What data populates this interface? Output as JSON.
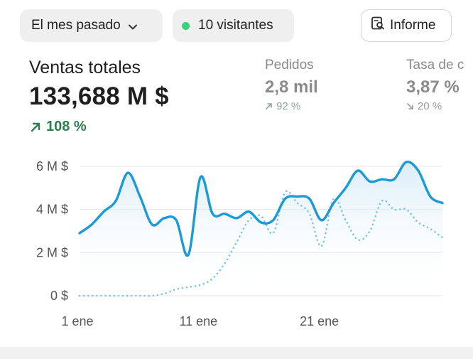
{
  "filters": {
    "period_label": "El mes pasado",
    "visitors_label": "10 visitantes",
    "visitors_dot_color": "#34d27b"
  },
  "report_button": {
    "label": "Informe",
    "icon": "report-search-icon"
  },
  "metrics": {
    "main": {
      "label": "Ventas totales",
      "value": "133,688 M $",
      "change": "108 %",
      "change_icon": "arrow-up-right-icon",
      "change_color": "#2e7d4f"
    },
    "orders": {
      "label": "Pedidos",
      "value": "2,8 mil",
      "change": "92 %",
      "change_icon": "arrow-up-right-icon"
    },
    "conversion": {
      "label": "Tasa de c",
      "value": "3,87 %",
      "change": "20 %",
      "change_icon": "arrow-down-right-icon"
    }
  },
  "chart_data": {
    "type": "line",
    "x_ticks": [
      "1 ene",
      "11 ene",
      "21 ene"
    ],
    "y_ticks": [
      "0 $",
      "2 M $",
      "4 M $",
      "6 M $"
    ],
    "ylim": [
      0,
      6.5
    ],
    "y_unit": "M $",
    "x": [
      1,
      2,
      3,
      4,
      5,
      6,
      7,
      8,
      9,
      10,
      11,
      12,
      13,
      14,
      15,
      16,
      17,
      18,
      19,
      20,
      21,
      22,
      23,
      24,
      25,
      26,
      27,
      28,
      29,
      30,
      31
    ],
    "series": [
      {
        "style": "solid",
        "color": "#1a9ad6",
        "values": [
          2.9,
          3.3,
          3.9,
          4.4,
          5.7,
          4.6,
          3.3,
          3.6,
          3.5,
          1.9,
          5.5,
          3.8,
          3.8,
          3.6,
          3.9,
          3.4,
          3.5,
          4.5,
          4.6,
          4.5,
          3.5,
          4.3,
          5.0,
          5.8,
          5.3,
          5.4,
          5.4,
          6.2,
          5.8,
          4.6,
          4.3
        ]
      },
      {
        "style": "dotted",
        "color": "#7cc4e6",
        "values": [
          0,
          0,
          0,
          0,
          0,
          0,
          0,
          0.1,
          0.3,
          0.4,
          0.5,
          0.8,
          1.5,
          2.5,
          3.5,
          3.7,
          2.9,
          4.8,
          4.3,
          3.8,
          2.3,
          4.5,
          3.5,
          2.6,
          3.0,
          4.4,
          4.0,
          4.0,
          3.4,
          3.1,
          2.7
        ]
      }
    ],
    "grid": true
  }
}
